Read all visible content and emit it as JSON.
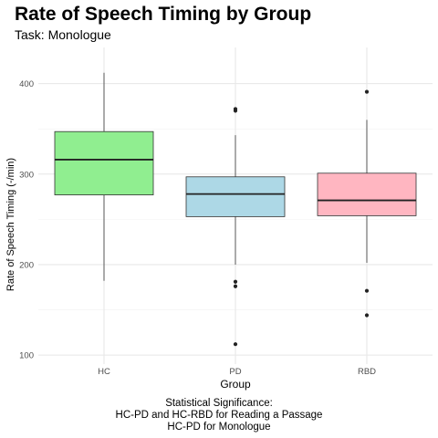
{
  "chart_data": {
    "type": "boxplot",
    "title": "Rate of Speech Timing by Group",
    "subtitle": "Task: Monologue",
    "xlabel": "Group",
    "ylabel": "Rate of Speech Timing (-/min)",
    "categories": [
      "HC",
      "PD",
      "RBD"
    ],
    "ylim": [
      90,
      440
    ],
    "yticks": [
      100,
      200,
      300,
      400
    ],
    "grid": true,
    "boxes": [
      {
        "group": "HC",
        "color": "#90ee90",
        "whisker_low": 182,
        "q1": 277,
        "median": 316,
        "q3": 347,
        "whisker_high": 412,
        "outliers": []
      },
      {
        "group": "PD",
        "color": "#add8e6",
        "whisker_low": 200,
        "q1": 253,
        "median": 278,
        "q3": 297,
        "whisker_high": 343,
        "outliers": [
          372,
          370,
          181,
          176,
          112
        ]
      },
      {
        "group": "RBD",
        "color": "#ffb6c1",
        "whisker_low": 202,
        "q1": 254,
        "median": 271,
        "q3": 301,
        "whisker_high": 360,
        "outliers": [
          391,
          171,
          144
        ]
      }
    ]
  },
  "caption": {
    "line1": "Statistical Significance:",
    "line2": "HC-PD and HC-RBD for Reading a Passage",
    "line3": "HC-PD for Monologue"
  }
}
